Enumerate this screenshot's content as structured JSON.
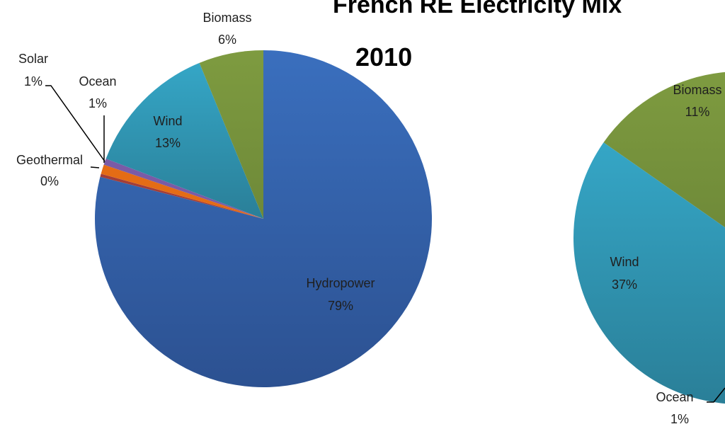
{
  "chart_data": [
    {
      "type": "pie",
      "title": "French RE Electricity Mix",
      "subtitle": "2010",
      "slices": [
        {
          "label": "Hydropower",
          "value": 79,
          "pct_label": "79%",
          "color": "#3464AB"
        },
        {
          "label": "Geothermal",
          "value": 0.3,
          "pct_label": "0%",
          "color": "#A33E38"
        },
        {
          "label": "Solar",
          "value": 0.9,
          "pct_label": "1%",
          "color": "#E46C15"
        },
        {
          "label": "Ocean",
          "value": 0.6,
          "pct_label": "1%",
          "color": "#7A5BA6"
        },
        {
          "label": "Wind",
          "value": 13,
          "pct_label": "13%",
          "color": "#2F97B5"
        },
        {
          "label": "Biomass",
          "value": 6.2,
          "pct_label": "6%",
          "color": "#77933C"
        }
      ]
    },
    {
      "type": "pie",
      "title": "",
      "slices": [
        {
          "label": "Wind",
          "value": 37,
          "pct_label": "37%",
          "color": "#2F97B5"
        },
        {
          "label": "Biomass",
          "value": 11,
          "pct_label": "11%",
          "color": "#77933C"
        },
        {
          "label": "Ocean",
          "value": 1,
          "pct_label": "1%",
          "color": "#7A5BA6"
        }
      ]
    }
  ]
}
